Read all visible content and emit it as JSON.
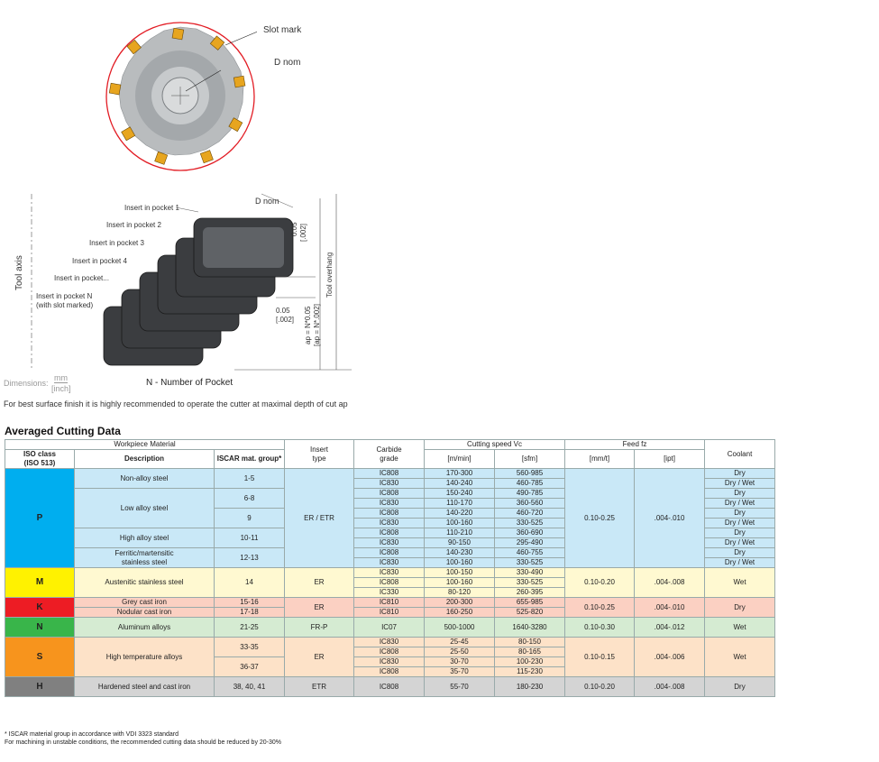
{
  "figure": {
    "slot_mark": "Slot mark",
    "d_nom": "D nom",
    "tool_axis": "Tool axis",
    "tool_overhang": "Tool overhang",
    "inserts": [
      "Insert in pocket 1",
      "Insert in pocket 2",
      "Insert in pocket 3",
      "Insert in pocket 4",
      "Insert in pocket...",
      "Insert in pocket N",
      "(with slot marked)"
    ],
    "dim_005_top": "0.05",
    "dim_002_top": "[.002]",
    "dim_005_bot": "0.05",
    "dim_002_bot": "[.002]",
    "ap_mm": "ap = N*0.05",
    "ap_inch": "[ap = N*.002]",
    "n_pockets": "N - Number of Pocket",
    "dimensions_label": "Dimensions:",
    "dim_mm": "mm",
    "dim_inch": "[inch]"
  },
  "note": "For best surface finish it is highly recommended to operate the cutter at maximal depth of cut ap",
  "section_title": "Averaged Cutting Data",
  "headers": {
    "workpiece_material": "Workpiece Material",
    "iso_class": "ISO class",
    "iso_513": "(ISO 513)",
    "description": "Description",
    "iscar_group": "ISCAR mat. group*",
    "insert": "Insert",
    "type": "type",
    "carbide": "Carbide",
    "grade": "grade",
    "cutting_speed": "Cutting speed Vc",
    "m_min": "[m/min]",
    "sfm": "[sfm]",
    "feed": "Feed  fz",
    "mm_t": "[mm/t]",
    "ipt": "[ipt]",
    "coolant": "Coolant"
  },
  "groups": {
    "P": {
      "label": "P",
      "color": "#00aeef",
      "bg": "#c9e8f7"
    },
    "M": {
      "label": "M",
      "color": "#fff200",
      "bg": "#fff9d1"
    },
    "K": {
      "label": "K",
      "color": "#ed1c24",
      "bg": "#fbd0c2"
    },
    "N": {
      "label": "N",
      "color": "#39b54a",
      "bg": "#d5ebd2"
    },
    "S": {
      "label": "S",
      "color": "#f7941d",
      "bg": "#fde2c8"
    },
    "H": {
      "label": "H",
      "color": "#808080",
      "bg": "#d4d4d4"
    }
  },
  "desc": {
    "p1": "Non-alloy steel",
    "p2": "Low alloy steel",
    "p3": "High alloy steel",
    "p4a": "Ferritic/martensitic",
    "p4b": "stainless steel",
    "m": "Austenitic stainless steel",
    "k1": "Grey cast iron",
    "k2": "Nodular cast iron",
    "n": "Aluminum alloys",
    "s": "High temperature alloys",
    "h": "Hardened steel and cast iron"
  },
  "mat": {
    "p1": "1-5",
    "p2a": "6-8",
    "p2b": "9",
    "p3": "10-11",
    "p4": "12-13",
    "m": "14",
    "k1": "15-16",
    "k2": "17-18",
    "n": "21-25",
    "s1": "33-35",
    "s2": "36-37",
    "h": "38, 40, 41"
  },
  "insert_type": {
    "p": "ER / ETR",
    "m": "ER",
    "k": "ER",
    "n": "FR-P",
    "s": "ER",
    "h": "ETR"
  },
  "feed": {
    "p": [
      "0.10-0.25",
      ".004-.010"
    ],
    "m": [
      "0.10-0.20",
      ".004-.008"
    ],
    "k": [
      "0.10-0.25",
      ".004-.010"
    ],
    "n": [
      "0.10-0.30",
      ".004-.012"
    ],
    "s": [
      "0.10-0.15",
      ".004-.006"
    ],
    "h": [
      "0.10-0.20",
      ".004-.008"
    ]
  },
  "coolant": {
    "dry": "Dry",
    "drywet": "Dry / Wet",
    "wet": "Wet"
  },
  "rows": {
    "p": [
      [
        "IC808",
        "170-300",
        "560-985",
        "Dry"
      ],
      [
        "IC830",
        "140-240",
        "460-785",
        "Dry / Wet"
      ],
      [
        "IC808",
        "150-240",
        "490-785",
        "Dry"
      ],
      [
        "IC830",
        "110-170",
        "360-560",
        "Dry / Wet"
      ],
      [
        "IC808",
        "140-220",
        "460-720",
        "Dry"
      ],
      [
        "IC830",
        "100-160",
        "330-525",
        "Dry / Wet"
      ],
      [
        "IC808",
        "110-210",
        "360-690",
        "Dry"
      ],
      [
        "IC830",
        "90-150",
        "295-490",
        "Dry / Wet"
      ],
      [
        "IC808",
        "140-230",
        "460-755",
        "Dry"
      ],
      [
        "IC830",
        "100-160",
        "330-525",
        "Dry / Wet"
      ]
    ],
    "m": [
      [
        "IC830",
        "100-150",
        "330-490"
      ],
      [
        "IC808",
        "100-160",
        "330-525"
      ],
      [
        "IC330",
        "80-120",
        "260-395"
      ]
    ],
    "k": [
      [
        "IC810",
        "200-300",
        "655-985"
      ],
      [
        "IC810",
        "160-250",
        "525-820"
      ]
    ],
    "n": [
      [
        "IC07",
        "500-1000",
        "1640-3280"
      ]
    ],
    "s": [
      [
        "IC830",
        "25-45",
        "80-150"
      ],
      [
        "IC808",
        "25-50",
        "80-165"
      ],
      [
        "IC830",
        "30-70",
        "100-230"
      ],
      [
        "IC808",
        "35-70",
        "115-230"
      ]
    ],
    "h": [
      [
        "IC808",
        "55-70",
        "180-230"
      ]
    ]
  },
  "footnotes": [
    "* ISCAR material group in accordance with VDI 3323 standard",
    "For machining in unstable conditions, the recommended cutting data should be reduced by 20-30%"
  ]
}
